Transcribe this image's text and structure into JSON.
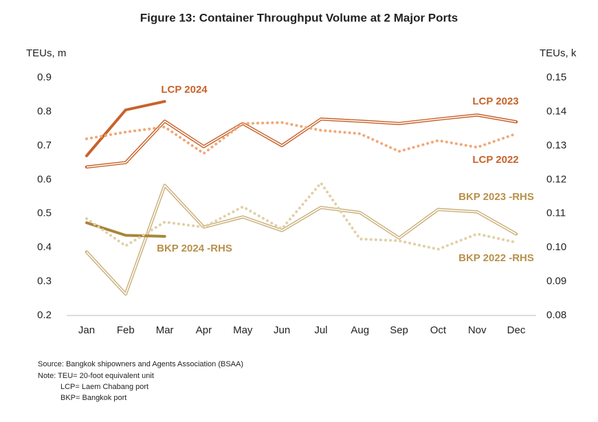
{
  "chart_data": {
    "type": "line",
    "title": "Figure 13: Container Throughput Volume at 2 Major Ports",
    "y_label": "TEUs, m",
    "y2_label": "TEUs, k",
    "categories": [
      "Jan",
      "Feb",
      "Mar",
      "Apr",
      "May",
      "Jun",
      "Jul",
      "Aug",
      "Sep",
      "Oct",
      "Nov",
      "Dec"
    ],
    "ylim": [
      0.2,
      0.9
    ],
    "yticks": [
      0.2,
      0.3,
      0.4,
      0.5,
      0.6,
      0.7,
      0.8,
      0.9
    ],
    "y2lim": [
      0.08,
      0.15
    ],
    "y2ticks": [
      0.08,
      0.09,
      {
        "value": 0.1,
        "label": "0.10"
      },
      0.11,
      0.12,
      0.13,
      0.14,
      0.15
    ],
    "series": [
      {
        "name": "LCP 2024",
        "color": "#c8622a",
        "style": "thick",
        "values": [
          0.67,
          0.805,
          0.83,
          null,
          null,
          null,
          null,
          null,
          null,
          null,
          null,
          null
        ]
      },
      {
        "name": "LCP 2023",
        "color": "#c8622a",
        "style": "double",
        "values": [
          0.637,
          0.65,
          0.772,
          0.697,
          0.765,
          0.7,
          0.778,
          0.772,
          0.765,
          0.778,
          0.79,
          0.77
        ]
      },
      {
        "name": "LCP 2022",
        "color": "#f0a878",
        "style": "dotted",
        "values": [
          0.72,
          0.74,
          0.755,
          0.677,
          0.765,
          0.768,
          0.745,
          0.735,
          0.683,
          0.715,
          0.695,
          0.735
        ]
      },
      {
        "name": "BKP 2023 -RHS",
        "color": "#cbb07a",
        "style": "double",
        "axis": "y2",
        "values": [
          0.0987,
          0.0863,
          0.1183,
          0.106,
          0.109,
          0.105,
          0.1118,
          0.1103,
          0.1028,
          0.1112,
          0.1105,
          0.104
        ]
      },
      {
        "name": "BKP 2024 -RHS",
        "color": "#a8853a",
        "style": "thick",
        "axis": "y2",
        "values": [
          0.1073,
          0.1036,
          0.1033,
          null,
          null,
          null,
          null,
          null,
          null,
          null,
          null,
          null
        ]
      },
      {
        "name": "BKP 2022 -RHS",
        "color": "#e2cfa6",
        "style": "dotted",
        "axis": "y2",
        "values": [
          0.1085,
          0.1005,
          0.1075,
          0.106,
          0.112,
          0.1055,
          0.119,
          0.1025,
          0.102,
          0.0995,
          0.104,
          0.1015
        ]
      }
    ],
    "notes": [
      "Source: Bangkok shipowners and Agents Association (BSAA)",
      "Note: TEU= 20-foot equivalent unit",
      "LCP= Laem Chabang port",
      "BKP= Bangkok port"
    ]
  }
}
